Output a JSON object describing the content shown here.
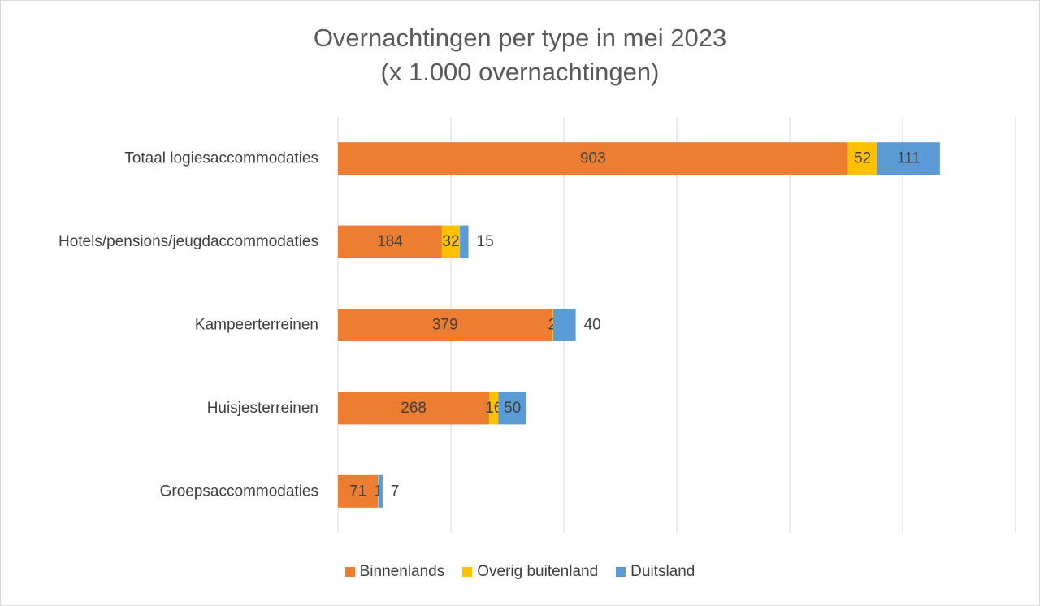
{
  "chart_data": {
    "type": "bar",
    "orientation": "horizontal",
    "stacked": true,
    "title": "Overnachtingen per type in mei 2023",
    "subtitle": "(x 1.000 overnachtingen)",
    "categories": [
      "Totaal logiesaccommodaties",
      "Hotels/pensions/jeugdaccommodaties",
      "Kampeerterreinen",
      "Huisjesterreinen",
      "Groepsaccommodaties"
    ],
    "series": [
      {
        "name": "Binnenlands",
        "color": "#ED7D31",
        "values": [
          903,
          184,
          379,
          268,
          71
        ],
        "labels": [
          "903",
          "184",
          "379",
          "268",
          "71"
        ]
      },
      {
        "name": "Overig buitenland",
        "color": "#FFC000",
        "values": [
          52,
          32,
          2,
          16,
          1
        ],
        "labels": [
          "52",
          "32",
          "2",
          "16",
          "1"
        ]
      },
      {
        "name": "Duitsland",
        "color": "#5B9BD5",
        "values": [
          111,
          15,
          40,
          50,
          7
        ],
        "labels": [
          "111",
          "15",
          "40",
          "50",
          "7"
        ]
      }
    ],
    "xlim": [
      0,
      1200
    ],
    "gridlines": [
      0,
      200,
      400,
      600,
      800,
      1000,
      1200
    ],
    "grid": true,
    "legend": "bottom"
  }
}
